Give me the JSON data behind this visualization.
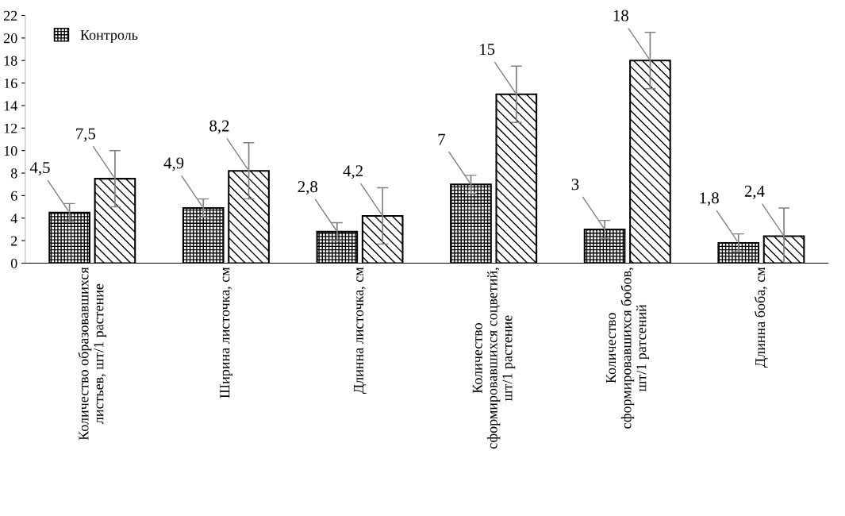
{
  "chart_data": {
    "type": "bar",
    "categories": [
      "Количество образовавшихся\nлистьев, шт/1 растение",
      "Ширина листочка, см",
      "Длинна листочка, см",
      "Количество\nсформировавшихся соцветий,\nшт/1 растение",
      "Количество\nсформировавшихся бобов,\nшт/1 ратсений",
      "Длинна боба, см"
    ],
    "series": [
      {
        "name": "Контроль",
        "color": "#000000",
        "values": [
          4.5,
          4.9,
          2.8,
          7,
          3,
          1.8
        ],
        "errors": [
          0.8,
          0.8,
          0.8,
          0.8,
          0.8,
          0.8
        ],
        "value_labels": [
          "4,5",
          "4,9",
          "2,8",
          "7",
          "3",
          "1,8"
        ]
      },
      {
        "color": "#000000",
        "values": [
          7.5,
          8.2,
          4.2,
          15,
          18,
          2.4
        ],
        "errors": [
          2.5,
          2.5,
          2.5,
          2.5,
          2.5,
          2.5
        ],
        "value_labels": [
          "7,5",
          "8,2",
          "4,2",
          "15",
          "18",
          "2,4"
        ]
      }
    ],
    "ylim": [
      0,
      22
    ],
    "yticks": [
      0,
      2,
      4,
      6,
      8,
      10,
      12,
      14,
      16,
      18,
      20,
      22
    ],
    "grid": false,
    "legend": "top left"
  }
}
